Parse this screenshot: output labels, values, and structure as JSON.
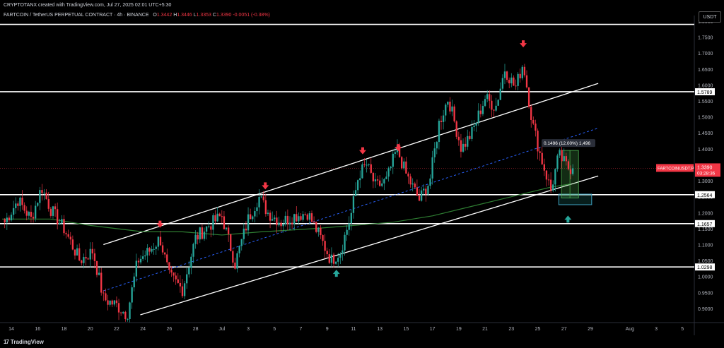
{
  "header": {
    "author_line": "CRYPTOTANX created with TradingView.com, Jul 27, 2025 02:01 UTC+5:30",
    "symbol_line": "FARTCOIN / TetherUS PERPETUAL CONTRACT · 4h · BINANCE",
    "ohlc": {
      "o_label": "O",
      "o": "1.3442",
      "h_label": "H",
      "h": "1.3446",
      "l_label": "L",
      "l": "1.3353",
      "c_label": "C",
      "c": "1.3390",
      "change": "-0.0051 (-0.38%)"
    }
  },
  "currency_label": "USDT",
  "footer": {
    "logo": "17",
    "brand": "TradingView"
  },
  "colors": {
    "up": "#26a69a",
    "down": "#f23645",
    "ma": "#2e7d32",
    "mid": "#2962ff",
    "line": "#ffffff",
    "price_tag": "#f23645"
  },
  "chart_data": {
    "type": "candlestick",
    "timeframe": "4h",
    "ylim": [
      0.86,
      1.8
    ],
    "y_ticks": [
      0.9,
      0.95,
      1.0,
      1.05,
      1.1,
      1.15,
      1.2,
      1.25,
      1.3,
      1.35,
      1.4,
      1.45,
      1.5,
      1.55,
      1.6,
      1.65,
      1.7,
      1.75,
      1.8
    ],
    "x_ticks": [
      "14",
      "16",
      "18",
      "20",
      "22",
      "24",
      "26",
      "28",
      "Jul",
      "3",
      "5",
      "7",
      "9",
      "11",
      "13",
      "15",
      "17",
      "19",
      "21",
      "23",
      "25",
      "27",
      "29",
      "Aug",
      "3",
      "5"
    ],
    "x_tick_days": [
      14,
      16,
      18,
      20,
      22,
      24,
      26,
      28,
      30,
      32,
      34,
      36,
      38,
      40,
      42,
      44,
      46,
      48,
      50,
      52,
      54,
      56,
      58,
      61,
      63,
      65
    ],
    "xlim_days": [
      13.3,
      65.9
    ],
    "key_points": [
      {
        "day": 13.5,
        "price": 1.17
      },
      {
        "day": 14.5,
        "price": 1.24
      },
      {
        "day": 15.5,
        "price": 1.18
      },
      {
        "day": 16.3,
        "price": 1.28
      },
      {
        "day": 17.0,
        "price": 1.21
      },
      {
        "day": 18.0,
        "price": 1.15
      },
      {
        "day": 19.2,
        "price": 1.05
      },
      {
        "day": 20.2,
        "price": 1.08
      },
      {
        "day": 21.0,
        "price": 0.93
      },
      {
        "day": 22.0,
        "price": 0.91
      },
      {
        "day": 22.8,
        "price": 0.88
      },
      {
        "day": 23.6,
        "price": 1.05
      },
      {
        "day": 24.5,
        "price": 1.08
      },
      {
        "day": 25.3,
        "price": 1.12
      },
      {
        "day": 26.0,
        "price": 1.0
      },
      {
        "day": 27.0,
        "price": 0.96
      },
      {
        "day": 28.0,
        "price": 1.12
      },
      {
        "day": 29.0,
        "price": 1.16
      },
      {
        "day": 30.0,
        "price": 1.19
      },
      {
        "day": 31.0,
        "price": 1.04
      },
      {
        "day": 32.0,
        "price": 1.18
      },
      {
        "day": 32.8,
        "price": 1.25
      },
      {
        "day": 33.5,
        "price": 1.2
      },
      {
        "day": 34.5,
        "price": 1.17
      },
      {
        "day": 35.5,
        "price": 1.19
      },
      {
        "day": 36.5,
        "price": 1.2
      },
      {
        "day": 37.5,
        "price": 1.12
      },
      {
        "day": 38.3,
        "price": 1.05
      },
      {
        "day": 39.0,
        "price": 1.08
      },
      {
        "day": 39.8,
        "price": 1.19
      },
      {
        "day": 40.4,
        "price": 1.32
      },
      {
        "day": 41.0,
        "price": 1.35
      },
      {
        "day": 41.7,
        "price": 1.28
      },
      {
        "day": 42.5,
        "price": 1.3
      },
      {
        "day": 43.3,
        "price": 1.4
      },
      {
        "day": 44.0,
        "price": 1.32
      },
      {
        "day": 45.0,
        "price": 1.24
      },
      {
        "day": 45.8,
        "price": 1.3
      },
      {
        "day": 46.5,
        "price": 1.48
      },
      {
        "day": 47.2,
        "price": 1.56
      },
      {
        "day": 48.2,
        "price": 1.4
      },
      {
        "day": 49.0,
        "price": 1.45
      },
      {
        "day": 50.0,
        "price": 1.56
      },
      {
        "day": 50.8,
        "price": 1.53
      },
      {
        "day": 51.5,
        "price": 1.65
      },
      {
        "day": 52.3,
        "price": 1.59
      },
      {
        "day": 52.9,
        "price": 1.67
      },
      {
        "day": 53.6,
        "price": 1.48
      },
      {
        "day": 54.2,
        "price": 1.38
      },
      {
        "day": 55.0,
        "price": 1.27
      },
      {
        "day": 55.6,
        "price": 1.38
      },
      {
        "day": 56.3,
        "price": 1.34
      },
      {
        "day": 56.8,
        "price": 1.339
      }
    ],
    "moving_average": [
      {
        "day": 13.3,
        "price": 1.18
      },
      {
        "day": 17,
        "price": 1.18
      },
      {
        "day": 20,
        "price": 1.16
      },
      {
        "day": 24,
        "price": 1.14
      },
      {
        "day": 27,
        "price": 1.14
      },
      {
        "day": 30,
        "price": 1.13
      },
      {
        "day": 33,
        "price": 1.14
      },
      {
        "day": 37,
        "price": 1.15
      },
      {
        "day": 40,
        "price": 1.16
      },
      {
        "day": 43,
        "price": 1.17
      },
      {
        "day": 46,
        "price": 1.19
      },
      {
        "day": 49,
        "price": 1.22
      },
      {
        "day": 52,
        "price": 1.25
      },
      {
        "day": 55,
        "price": 1.28
      },
      {
        "day": 56.5,
        "price": 1.29
      }
    ],
    "horizontal_levels": [
      {
        "price": 1.79,
        "label": ""
      },
      {
        "price": 1.5789,
        "label": "1.5789"
      },
      {
        "price": 1.2564,
        "label": "1.2564"
      },
      {
        "price": 1.1657,
        "label": "1.1657"
      },
      {
        "price": 1.0298,
        "label": "1.0298"
      }
    ],
    "channel_upper": {
      "start": {
        "day": 21.0,
        "price": 1.1
      },
      "end": {
        "day": 58.6,
        "price": 1.605
      }
    },
    "channel_lower": {
      "start": {
        "day": 23.8,
        "price": 0.88
      },
      "end": {
        "day": 58.6,
        "price": 1.315
      }
    },
    "channel_mid": {
      "start": {
        "day": 21.0,
        "price": 0.955
      },
      "end": {
        "day": 58.6,
        "price": 1.465
      }
    },
    "red_arrows": [
      {
        "day": 25.3,
        "price": 1.155
      },
      {
        "day": 33.3,
        "price": 1.275
      },
      {
        "day": 40.7,
        "price": 1.385
      },
      {
        "day": 43.4,
        "price": 1.395
      },
      {
        "day": 52.9,
        "price": 1.72
      }
    ],
    "green_arrows": [
      {
        "day": 38.7,
        "price": 1.01
      },
      {
        "day": 56.3,
        "price": 1.18
      }
    ],
    "measurement_label": "0.1496 (12.00%) 1,496",
    "measure_box": {
      "day_start": 55.8,
      "day_end": 57.1,
      "price_low": 1.246,
      "price_high": 1.395
    },
    "zone_box": {
      "day_start": 55.6,
      "day_end": 58.1,
      "price_low": 1.225,
      "price_high": 1.258
    },
    "last_price": {
      "value": "1.3390",
      "symbol": "FARTCOINUSDT.P",
      "countdown": "03:28:36"
    }
  }
}
